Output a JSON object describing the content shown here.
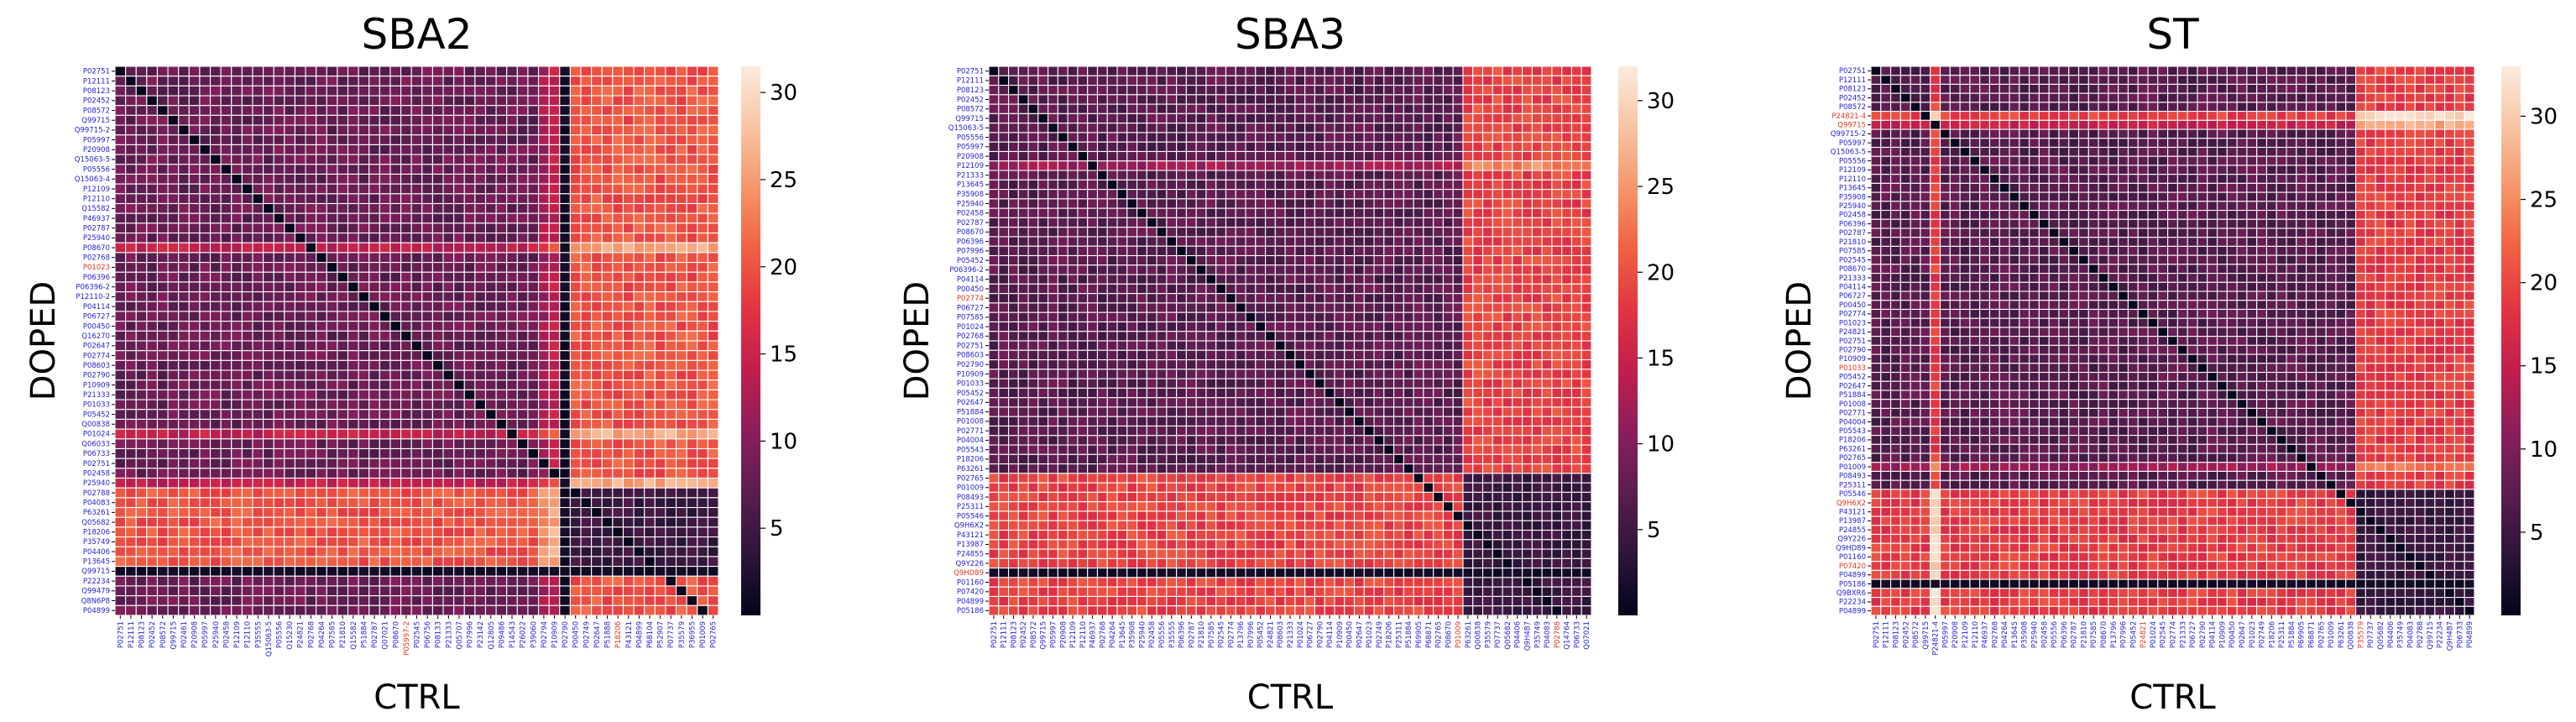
{
  "figure": {
    "colorbar": {
      "ticks": [
        5,
        10,
        15,
        20,
        25,
        30
      ],
      "stops": [
        "#03051a",
        "#2d1539",
        "#5a1d4f",
        "#8a1e5c",
        "#c01e4d",
        "#e13342",
        "#f06043",
        "#f5956b",
        "#f8c4a4",
        "#faebdd"
      ]
    },
    "label_colors": {
      "normal": "#1f1fd6",
      "highlight": "#e8341c"
    }
  },
  "chart_data": [
    {
      "type": "heatmap",
      "title": "SBA2",
      "xlabel": "CTRL",
      "ylabel": "DOPED",
      "vmin": 0,
      "vmax": 31.5,
      "base_value": 8.0,
      "xticklabels": [
        "P02751",
        "P12111",
        "P08123",
        "P02452",
        "P08572",
        "Q99715",
        "P02461",
        "P20908",
        "P05997",
        "P25940",
        "P02458",
        "P12109",
        "P12110",
        "P35555",
        "Q15063-5",
        "P05556",
        "O15230",
        "P24821",
        "P02768",
        "P04264",
        "P07585",
        "P21810",
        "Q15582",
        "P51884",
        "P02787",
        "Q07021",
        "P08670",
        "P05997-2",
        "P02545",
        "P06756",
        "P08133",
        "P21333",
        "Q05707",
        "P07996",
        "P23142",
        "Q12805",
        "P09486",
        "P14543",
        "P26022",
        "P39060",
        "P02794",
        "P10909",
        "P02790",
        "P00450",
        "P02749",
        "P02647",
        "P51888",
        "P18206",
        "P43121",
        "P04899",
        "P68104",
        "P52907",
        "P07737",
        "P35579",
        "P36955",
        "P01009",
        "P02765"
      ],
      "yticklabels": [
        "P02751",
        "P12111",
        "P08123",
        "P02452",
        "P08572",
        "Q99715",
        "Q99715-2",
        "P05997",
        "P20908",
        "Q15063-5",
        "P05556",
        "Q15063-4",
        "P12109",
        "P12110",
        "Q15582",
        "P46937",
        "P02787",
        "P25940",
        "P08670",
        "P02768",
        "P01023",
        "P06396",
        "P06396-2",
        "P12110-2",
        "P04114",
        "P06727",
        "P00450",
        "Q16270",
        "P02647",
        "P02774",
        "P08603",
        "P02790",
        "P10909",
        "P21333",
        "P01033",
        "P05452",
        "Q00838",
        "P01024",
        "Q06033",
        "P06733",
        "P02751",
        "P02458",
        "P25940",
        "P02788",
        "P04083",
        "P63261",
        "Q05682",
        "P18206",
        "P35749",
        "P04406",
        "P13645",
        "Q99715",
        "P22234",
        "Q99479",
        "Q8N6P8",
        "P04899"
      ],
      "highlight_rows": [
        20
      ],
      "highlight_cols": [
        27,
        47
      ],
      "row_offsets": [
        0,
        0,
        0,
        0,
        0,
        0,
        0,
        0,
        0,
        0,
        0,
        0,
        0,
        0,
        0,
        0,
        0,
        0,
        6,
        0,
        0,
        0,
        0,
        0,
        0,
        0,
        0,
        0,
        0,
        0,
        0,
        0,
        0,
        0,
        0,
        0,
        0,
        6,
        0,
        0,
        0,
        0,
        6,
        12,
        12,
        12,
        12,
        12,
        12,
        12,
        12,
        0,
        0,
        0,
        0,
        0
      ],
      "col_offsets": [
        0,
        0,
        0,
        0,
        0,
        0,
        0,
        0,
        0,
        0,
        0,
        0,
        0,
        0,
        0,
        0,
        0,
        0,
        0,
        0,
        0,
        0,
        0,
        0,
        0,
        0,
        0,
        0,
        0,
        0,
        0,
        0,
        0,
        0,
        0,
        0,
        0,
        0,
        0,
        0,
        4,
        6,
        -6,
        12,
        12,
        12,
        12,
        12,
        12,
        12,
        12,
        12,
        12,
        12,
        12,
        12,
        12
      ],
      "block_rows": [
        43,
        51
      ],
      "block_cols": [
        43,
        57
      ],
      "block_value": 3.0,
      "dark_rows": [
        51
      ],
      "dark_cols": [
        42
      ],
      "seed": 11
    },
    {
      "type": "heatmap",
      "title": "SBA3",
      "xlabel": "CTRL",
      "ylabel": "DOPED",
      "vmin": 0,
      "vmax": 32,
      "base_value": 7.0,
      "xticklabels": [
        "P02751",
        "P12111",
        "P08123",
        "P02452",
        "P08572",
        "Q99715",
        "P05997",
        "P20908",
        "P12109",
        "P12110",
        "P46937",
        "P02768",
        "P04264",
        "P13645",
        "P35908",
        "P25940",
        "P02458",
        "P05556",
        "P35555",
        "P06396",
        "P02787",
        "P21810",
        "P07585",
        "P02545",
        "P02774",
        "P13796",
        "P07996",
        "P05452",
        "P24821",
        "P08603",
        "P21333",
        "P01024",
        "P06727",
        "P02790",
        "P04114",
        "P10909",
        "P00450",
        "P02647",
        "P01023",
        "P02749",
        "P18206",
        "P25311",
        "P51884",
        "P69905",
        "P68871",
        "P02765",
        "P08670",
        "P01009",
        "P63261",
        "Q00838",
        "P35579",
        "P07737",
        "Q05682",
        "P04406",
        "Q9H4B7",
        "P35749",
        "P04083",
        "P02788",
        "Q14764",
        "P06733",
        "Q07021"
      ],
      "yticklabels": [
        "P02751",
        "P12111",
        "P08123",
        "P02452",
        "P08572",
        "Q99715",
        "Q15063-5",
        "P05556",
        "P05997",
        "P20908",
        "P12109",
        "P21333",
        "P13645",
        "P35908",
        "P25940",
        "P02458",
        "P02787",
        "P08670",
        "P06396",
        "P07996",
        "P05452",
        "P06396-2",
        "P04114",
        "P00450",
        "P02774",
        "P06727",
        "P07585",
        "P01024",
        "P02768",
        "P02751",
        "P08603",
        "P02790",
        "P10909",
        "P01033",
        "P05452",
        "P02647",
        "P51884",
        "P01008",
        "P02771",
        "P04004",
        "P05543",
        "P18206",
        "P63261",
        "P02765",
        "P01009",
        "P08493",
        "P25311",
        "P05546",
        "Q9H6X2",
        "P43121",
        "P13987",
        "P24855",
        "Q9Y226",
        "Q9HD89",
        "P01160",
        "P07420",
        "P04899",
        "P05186"
      ],
      "highlight_rows": [
        24,
        53
      ],
      "highlight_cols": [
        47,
        57
      ],
      "row_offsets": [
        0,
        0,
        0,
        0,
        0,
        0,
        0,
        0,
        0,
        0,
        5,
        0,
        0,
        0,
        0,
        0,
        0,
        0,
        0,
        0,
        0,
        0,
        0,
        0,
        0,
        0,
        0,
        0,
        0,
        0,
        0,
        0,
        0,
        0,
        0,
        0,
        0,
        0,
        0,
        0,
        0,
        0,
        0,
        12,
        12,
        12,
        12,
        12,
        12,
        12,
        12,
        12,
        12,
        -3,
        12,
        12,
        12,
        12
      ],
      "col_offsets": [
        0,
        0,
        0,
        0,
        0,
        0,
        0,
        0,
        0,
        0,
        0,
        0,
        0,
        0,
        0,
        0,
        0,
        0,
        0,
        0,
        0,
        0,
        0,
        0,
        0,
        0,
        0,
        0,
        0,
        0,
        0,
        0,
        0,
        0,
        0,
        0,
        0,
        0,
        0,
        0,
        0,
        0,
        0,
        0,
        0,
        0,
        0,
        0,
        12,
        12,
        12,
        12,
        12,
        12,
        12,
        12,
        12,
        12,
        12,
        12,
        12
      ],
      "block_rows": [
        43,
        58
      ],
      "block_cols": [
        48,
        61
      ],
      "block_value": 3.0,
      "dark_rows": [
        53
      ],
      "dark_cols": [],
      "seed": 23
    },
    {
      "type": "heatmap",
      "title": "ST",
      "xlabel": "CTRL",
      "ylabel": "DOPED",
      "vmin": 0,
      "vmax": 33,
      "base_value": 7.0,
      "xticklabels": [
        "P02751",
        "P12111",
        "P08123",
        "P02452",
        "P08572",
        "Q99715",
        "P24821-4",
        "P05997",
        "P20908",
        "P12109",
        "P12110",
        "P46937",
        "P02768",
        "P04264",
        "P13645",
        "P35908",
        "P25940",
        "P02458",
        "P05556",
        "P06396",
        "P02787",
        "P21810",
        "P07585",
        "P08670",
        "P13796",
        "P07996",
        "P05452",
        "P24821",
        "P01024",
        "P02545",
        "P02774",
        "P21333",
        "P06727",
        "P02790",
        "P04114",
        "P10909",
        "P00450",
        "P02647",
        "P01023",
        "P02749",
        "P18206",
        "P25311",
        "P51884",
        "P69905",
        "P68871",
        "P02765",
        "P01009",
        "P63261",
        "Q00838",
        "P35579",
        "P07737",
        "Q05682",
        "P04406",
        "P35749",
        "P04083",
        "P02788",
        "Q99715",
        "P22234",
        "Q9H4B7",
        "P06733",
        "P04899"
      ],
      "yticklabels": [
        "P02751",
        "P12111",
        "P08123",
        "P02452",
        "P08572",
        "P24821-4",
        "Q99715",
        "Q99715-2",
        "P05997",
        "Q15063-5",
        "P05556",
        "P12109",
        "P12110",
        "P13645",
        "P35908",
        "P25940",
        "P02458",
        "P06396",
        "P02787",
        "P21810",
        "P07585",
        "P02545",
        "P08670",
        "P21333",
        "P04114",
        "P06727",
        "P00450",
        "P02774",
        "P01023",
        "P24821",
        "P02751",
        "P02790",
        "P10909",
        "P01033",
        "P05452",
        "P02647",
        "P51884",
        "P01008",
        "P02771",
        "P04004",
        "P05543",
        "P18206",
        "P63261",
        "P02765",
        "P01009",
        "P08493",
        "P25311",
        "P05546",
        "Q9H6X2",
        "P43121",
        "P13987",
        "P24855",
        "Q9Y226",
        "Q9HD89",
        "P01160",
        "P07420",
        "P04899",
        "P05186",
        "Q9BXR6",
        "P22234",
        "P04899"
      ],
      "highlight_rows": [
        5,
        6,
        33,
        48,
        55
      ],
      "highlight_cols": [
        27,
        49
      ],
      "row_offsets": [
        0,
        0,
        0,
        0,
        0,
        12,
        8,
        0,
        0,
        0,
        0,
        0,
        0,
        0,
        0,
        0,
        0,
        0,
        0,
        0,
        0,
        0,
        0,
        0,
        0,
        0,
        0,
        0,
        0,
        0,
        0,
        0,
        0,
        0,
        0,
        0,
        0,
        0,
        0,
        0,
        0,
        0,
        0,
        0,
        5,
        0,
        0,
        12,
        12,
        12,
        12,
        12,
        12,
        12,
        12,
        12,
        12,
        -3,
        12,
        12,
        12
      ],
      "col_offsets": [
        0,
        0,
        0,
        0,
        0,
        0,
        12,
        0,
        0,
        0,
        0,
        0,
        0,
        0,
        0,
        0,
        0,
        0,
        0,
        0,
        0,
        0,
        0,
        0,
        0,
        0,
        0,
        0,
        0,
        0,
        0,
        0,
        0,
        0,
        0,
        0,
        0,
        0,
        0,
        0,
        0,
        0,
        0,
        0,
        0,
        0,
        0,
        0,
        0,
        12,
        12,
        12,
        12,
        12,
        12,
        12,
        12,
        12,
        12,
        12,
        12
      ],
      "block_rows": [
        47,
        61
      ],
      "block_cols": [
        49,
        61
      ],
      "block_value": 3.0,
      "dark_rows": [
        57
      ],
      "dark_cols": [],
      "seed": 37
    }
  ]
}
